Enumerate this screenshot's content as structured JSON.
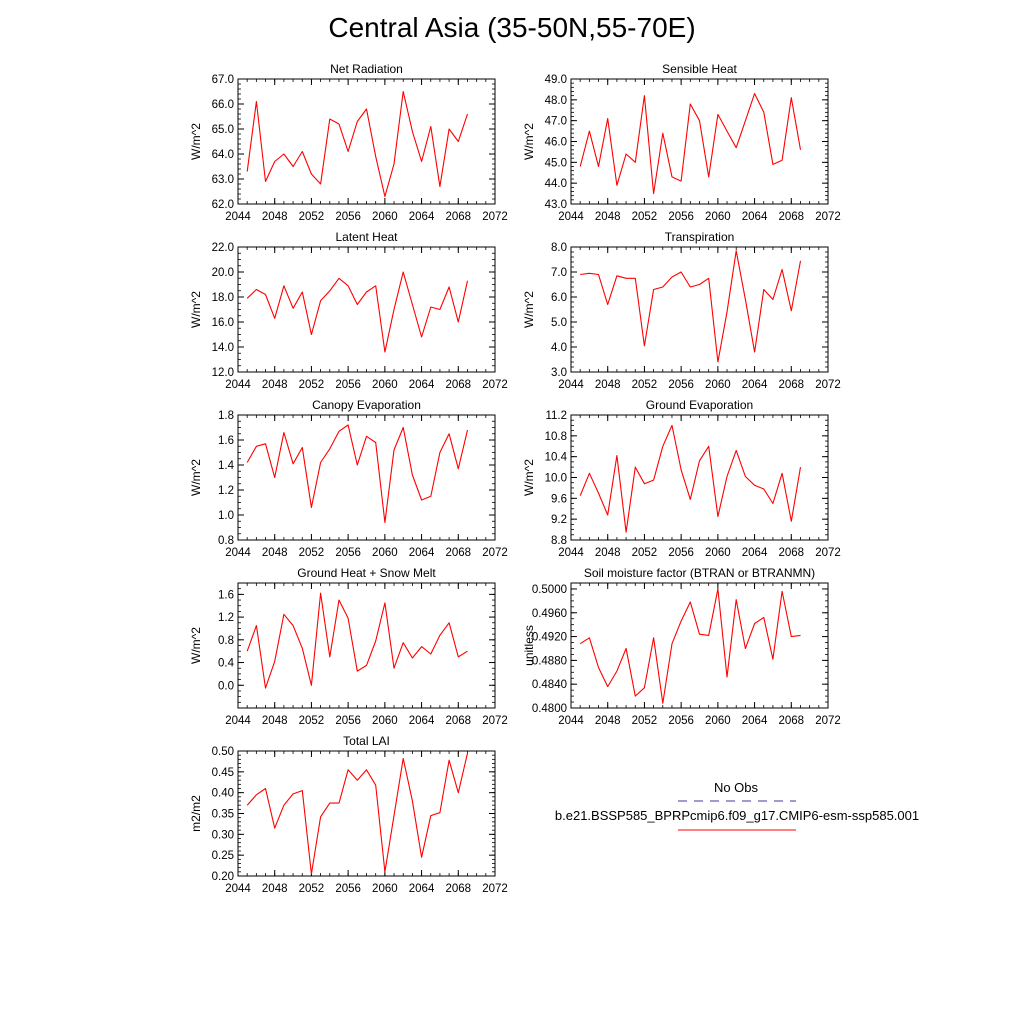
{
  "title": "Central Asia (35-50N,55-70E)",
  "series_color": "#ff0000",
  "legend": {
    "obs_label": "No Obs",
    "obs_color": "#3b3b9b",
    "model_label": "b.e21.BSSP585_BPRPcmip6.f09_g17.CMIP6-esm-ssp585.001",
    "model_color": "#ff0000"
  },
  "chart_data": [
    {
      "type": "line",
      "title": "Net Radiation",
      "ylabel": "W/m^2",
      "xlim": [
        2044,
        2072
      ],
      "x_ticks": [
        "2044",
        "2048",
        "2052",
        "2056",
        "2060",
        "2064",
        "2068",
        "2072"
      ],
      "ylim": [
        62.0,
        67.0
      ],
      "y_ticks": [
        "62.0",
        "63.0",
        "64.0",
        "65.0",
        "66.0",
        "67.0"
      ],
      "y_minor_step": 0.2,
      "x": [
        2045,
        2046,
        2047,
        2048,
        2049,
        2050,
        2051,
        2052,
        2053,
        2054,
        2055,
        2056,
        2057,
        2058,
        2059,
        2060,
        2061,
        2062,
        2063,
        2064,
        2065,
        2066,
        2067,
        2068,
        2069
      ],
      "values": [
        63.3,
        66.1,
        62.9,
        63.7,
        64.0,
        63.5,
        64.1,
        63.2,
        62.8,
        65.4,
        65.2,
        64.1,
        65.3,
        65.8,
        63.9,
        62.3,
        63.6,
        66.5,
        64.9,
        63.7,
        65.1,
        62.7,
        65.0,
        64.5,
        65.6
      ]
    },
    {
      "type": "line",
      "title": "Sensible Heat",
      "ylabel": "W/m^2",
      "xlim": [
        2044,
        2072
      ],
      "x_ticks": [
        "2044",
        "2048",
        "2052",
        "2056",
        "2060",
        "2064",
        "2068",
        "2072"
      ],
      "ylim": [
        43.0,
        49.0
      ],
      "y_ticks": [
        "43.0",
        "44.0",
        "45.0",
        "46.0",
        "47.0",
        "48.0",
        "49.0"
      ],
      "y_minor_step": 0.2,
      "x": [
        2045,
        2046,
        2047,
        2048,
        2049,
        2050,
        2051,
        2052,
        2053,
        2054,
        2055,
        2056,
        2057,
        2058,
        2059,
        2060,
        2061,
        2062,
        2063,
        2064,
        2065,
        2066,
        2067,
        2068,
        2069
      ],
      "values": [
        44.8,
        46.5,
        44.8,
        47.1,
        43.9,
        45.4,
        45.0,
        48.2,
        43.5,
        46.4,
        44.3,
        44.1,
        47.8,
        47.0,
        44.3,
        47.3,
        46.5,
        45.7,
        47.0,
        48.3,
        47.4,
        44.9,
        45.1,
        48.1,
        45.6
      ]
    },
    {
      "type": "line",
      "title": "Latent Heat",
      "ylabel": "W/m^2",
      "xlim": [
        2044,
        2072
      ],
      "x_ticks": [
        "2044",
        "2048",
        "2052",
        "2056",
        "2060",
        "2064",
        "2068",
        "2072"
      ],
      "ylim": [
        12.0,
        22.0
      ],
      "y_ticks": [
        "12.0",
        "14.0",
        "16.0",
        "18.0",
        "20.0",
        "22.0"
      ],
      "y_minor_step": 0.5,
      "x": [
        2045,
        2046,
        2047,
        2048,
        2049,
        2050,
        2051,
        2052,
        2053,
        2054,
        2055,
        2056,
        2057,
        2058,
        2059,
        2060,
        2061,
        2062,
        2063,
        2064,
        2065,
        2066,
        2067,
        2068,
        2069
      ],
      "values": [
        17.9,
        18.6,
        18.2,
        16.3,
        18.9,
        17.1,
        18.4,
        15.0,
        17.7,
        18.5,
        19.5,
        18.9,
        17.4,
        18.4,
        18.9,
        13.6,
        17.0,
        20.0,
        17.4,
        14.8,
        17.2,
        17.0,
        18.8,
        16.0,
        19.3
      ]
    },
    {
      "type": "line",
      "title": "Transpiration",
      "ylabel": "W/m^2",
      "xlim": [
        2044,
        2072
      ],
      "x_ticks": [
        "2044",
        "2048",
        "2052",
        "2056",
        "2060",
        "2064",
        "2068",
        "2072"
      ],
      "ylim": [
        3.0,
        8.0
      ],
      "y_ticks": [
        "3.0",
        "4.0",
        "5.0",
        "6.0",
        "7.0",
        "8.0"
      ],
      "y_minor_step": 0.2,
      "x": [
        2045,
        2046,
        2047,
        2048,
        2049,
        2050,
        2051,
        2052,
        2053,
        2054,
        2055,
        2056,
        2057,
        2058,
        2059,
        2060,
        2061,
        2062,
        2063,
        2064,
        2065,
        2066,
        2067,
        2068,
        2069
      ],
      "values": [
        6.9,
        6.95,
        6.9,
        5.7,
        6.85,
        6.75,
        6.75,
        4.05,
        6.3,
        6.4,
        6.8,
        7.0,
        6.4,
        6.5,
        6.75,
        3.4,
        5.4,
        7.85,
        5.9,
        3.8,
        6.3,
        5.9,
        7.1,
        5.45,
        7.45
      ]
    },
    {
      "type": "line",
      "title": "Canopy Evaporation",
      "ylabel": "W/m^2",
      "xlim": [
        2044,
        2072
      ],
      "x_ticks": [
        "2044",
        "2048",
        "2052",
        "2056",
        "2060",
        "2064",
        "2068",
        "2072"
      ],
      "ylim": [
        0.8,
        1.8
      ],
      "y_ticks": [
        "0.8",
        "1.0",
        "1.2",
        "1.4",
        "1.6",
        "1.8"
      ],
      "y_minor_step": 0.05,
      "x": [
        2045,
        2046,
        2047,
        2048,
        2049,
        2050,
        2051,
        2052,
        2053,
        2054,
        2055,
        2056,
        2057,
        2058,
        2059,
        2060,
        2061,
        2062,
        2063,
        2064,
        2065,
        2066,
        2067,
        2068,
        2069
      ],
      "values": [
        1.42,
        1.55,
        1.57,
        1.3,
        1.66,
        1.41,
        1.54,
        1.06,
        1.42,
        1.53,
        1.67,
        1.72,
        1.4,
        1.63,
        1.58,
        0.94,
        1.52,
        1.7,
        1.32,
        1.12,
        1.15,
        1.5,
        1.65,
        1.37,
        1.68
      ]
    },
    {
      "type": "line",
      "title": "Ground Evaporation",
      "ylabel": "W/m^2",
      "xlim": [
        2044,
        2072
      ],
      "x_ticks": [
        "2044",
        "2048",
        "2052",
        "2056",
        "2060",
        "2064",
        "2068",
        "2072"
      ],
      "ylim": [
        8.8,
        11.2
      ],
      "y_ticks": [
        "8.8",
        "9.2",
        "9.6",
        "10.0",
        "10.4",
        "10.8",
        "11.2"
      ],
      "y_minor_step": 0.1,
      "x": [
        2045,
        2046,
        2047,
        2048,
        2049,
        2050,
        2051,
        2052,
        2053,
        2054,
        2055,
        2056,
        2057,
        2058,
        2059,
        2060,
        2061,
        2062,
        2063,
        2064,
        2065,
        2066,
        2067,
        2068,
        2069
      ],
      "values": [
        9.65,
        10.08,
        9.7,
        9.28,
        10.42,
        8.95,
        10.2,
        9.88,
        9.95,
        10.6,
        11.0,
        10.15,
        9.58,
        10.32,
        10.6,
        9.25,
        10.02,
        10.52,
        10.02,
        9.85,
        9.78,
        9.5,
        10.08,
        9.16,
        10.2
      ]
    },
    {
      "type": "line",
      "title": "Ground Heat + Snow Melt",
      "ylabel": "W/m^2",
      "xlim": [
        2044,
        2072
      ],
      "x_ticks": [
        "2044",
        "2048",
        "2052",
        "2056",
        "2060",
        "2064",
        "2068",
        "2072"
      ],
      "ylim": [
        -0.4,
        1.8
      ],
      "y_ticks": [
        "0.0",
        "0.4",
        "0.8",
        "1.2",
        "1.6"
      ],
      "y_tick_values": [
        0.0,
        0.4,
        0.8,
        1.2,
        1.6
      ],
      "y_minor_step": 0.1,
      "x": [
        2045,
        2046,
        2047,
        2048,
        2049,
        2050,
        2051,
        2052,
        2053,
        2054,
        2055,
        2056,
        2057,
        2058,
        2059,
        2060,
        2061,
        2062,
        2063,
        2064,
        2065,
        2066,
        2067,
        2068,
        2069
      ],
      "values": [
        0.6,
        1.05,
        -0.05,
        0.42,
        1.25,
        1.05,
        0.65,
        0.0,
        1.62,
        0.5,
        1.5,
        1.18,
        0.25,
        0.35,
        0.78,
        1.45,
        0.3,
        0.75,
        0.48,
        0.68,
        0.55,
        0.88,
        1.1,
        0.5,
        0.6
      ]
    },
    {
      "type": "line",
      "title": "Soil moisture factor (BTRAN or BTRANMN)",
      "ylabel": "unitless",
      "xlim": [
        2044,
        2072
      ],
      "x_ticks": [
        "2044",
        "2048",
        "2052",
        "2056",
        "2060",
        "2064",
        "2068",
        "2072"
      ],
      "ylim": [
        0.48,
        0.501
      ],
      "y_ticks": [
        "0.4800",
        "0.4840",
        "0.4880",
        "0.4920",
        "0.4960",
        "0.5000"
      ],
      "y_tick_values": [
        0.48,
        0.484,
        0.488,
        0.492,
        0.496,
        0.5
      ],
      "y_minor_step": 0.001,
      "x": [
        2045,
        2046,
        2047,
        2048,
        2049,
        2050,
        2051,
        2052,
        2053,
        2054,
        2055,
        2056,
        2057,
        2058,
        2059,
        2060,
        2061,
        2062,
        2063,
        2064,
        2065,
        2066,
        2067,
        2068,
        2069
      ],
      "values": [
        0.4908,
        0.4918,
        0.4868,
        0.4836,
        0.4862,
        0.49,
        0.482,
        0.4834,
        0.4918,
        0.4808,
        0.4908,
        0.4946,
        0.4978,
        0.4924,
        0.4922,
        0.5,
        0.4852,
        0.4982,
        0.49,
        0.4942,
        0.4952,
        0.4882,
        0.4996,
        0.492,
        0.4922
      ]
    },
    {
      "type": "line",
      "title": "Total LAI",
      "ylabel": "m2/m2",
      "xlim": [
        2044,
        2072
      ],
      "x_ticks": [
        "2044",
        "2048",
        "2052",
        "2056",
        "2060",
        "2064",
        "2068",
        "2072"
      ],
      "ylim": [
        0.2,
        0.5
      ],
      "y_ticks": [
        "0.20",
        "0.25",
        "0.30",
        "0.35",
        "0.40",
        "0.45",
        "0.50"
      ],
      "y_minor_step": 0.01,
      "x": [
        2045,
        2046,
        2047,
        2048,
        2049,
        2050,
        2051,
        2052,
        2053,
        2054,
        2055,
        2056,
        2057,
        2058,
        2059,
        2060,
        2061,
        2062,
        2063,
        2064,
        2065,
        2066,
        2067,
        2068,
        2069
      ],
      "values": [
        0.37,
        0.395,
        0.41,
        0.315,
        0.37,
        0.397,
        0.405,
        0.205,
        0.342,
        0.375,
        0.375,
        0.455,
        0.43,
        0.455,
        0.418,
        0.21,
        0.345,
        0.482,
        0.38,
        0.245,
        0.345,
        0.352,
        0.478,
        0.4,
        0.495
      ]
    }
  ]
}
